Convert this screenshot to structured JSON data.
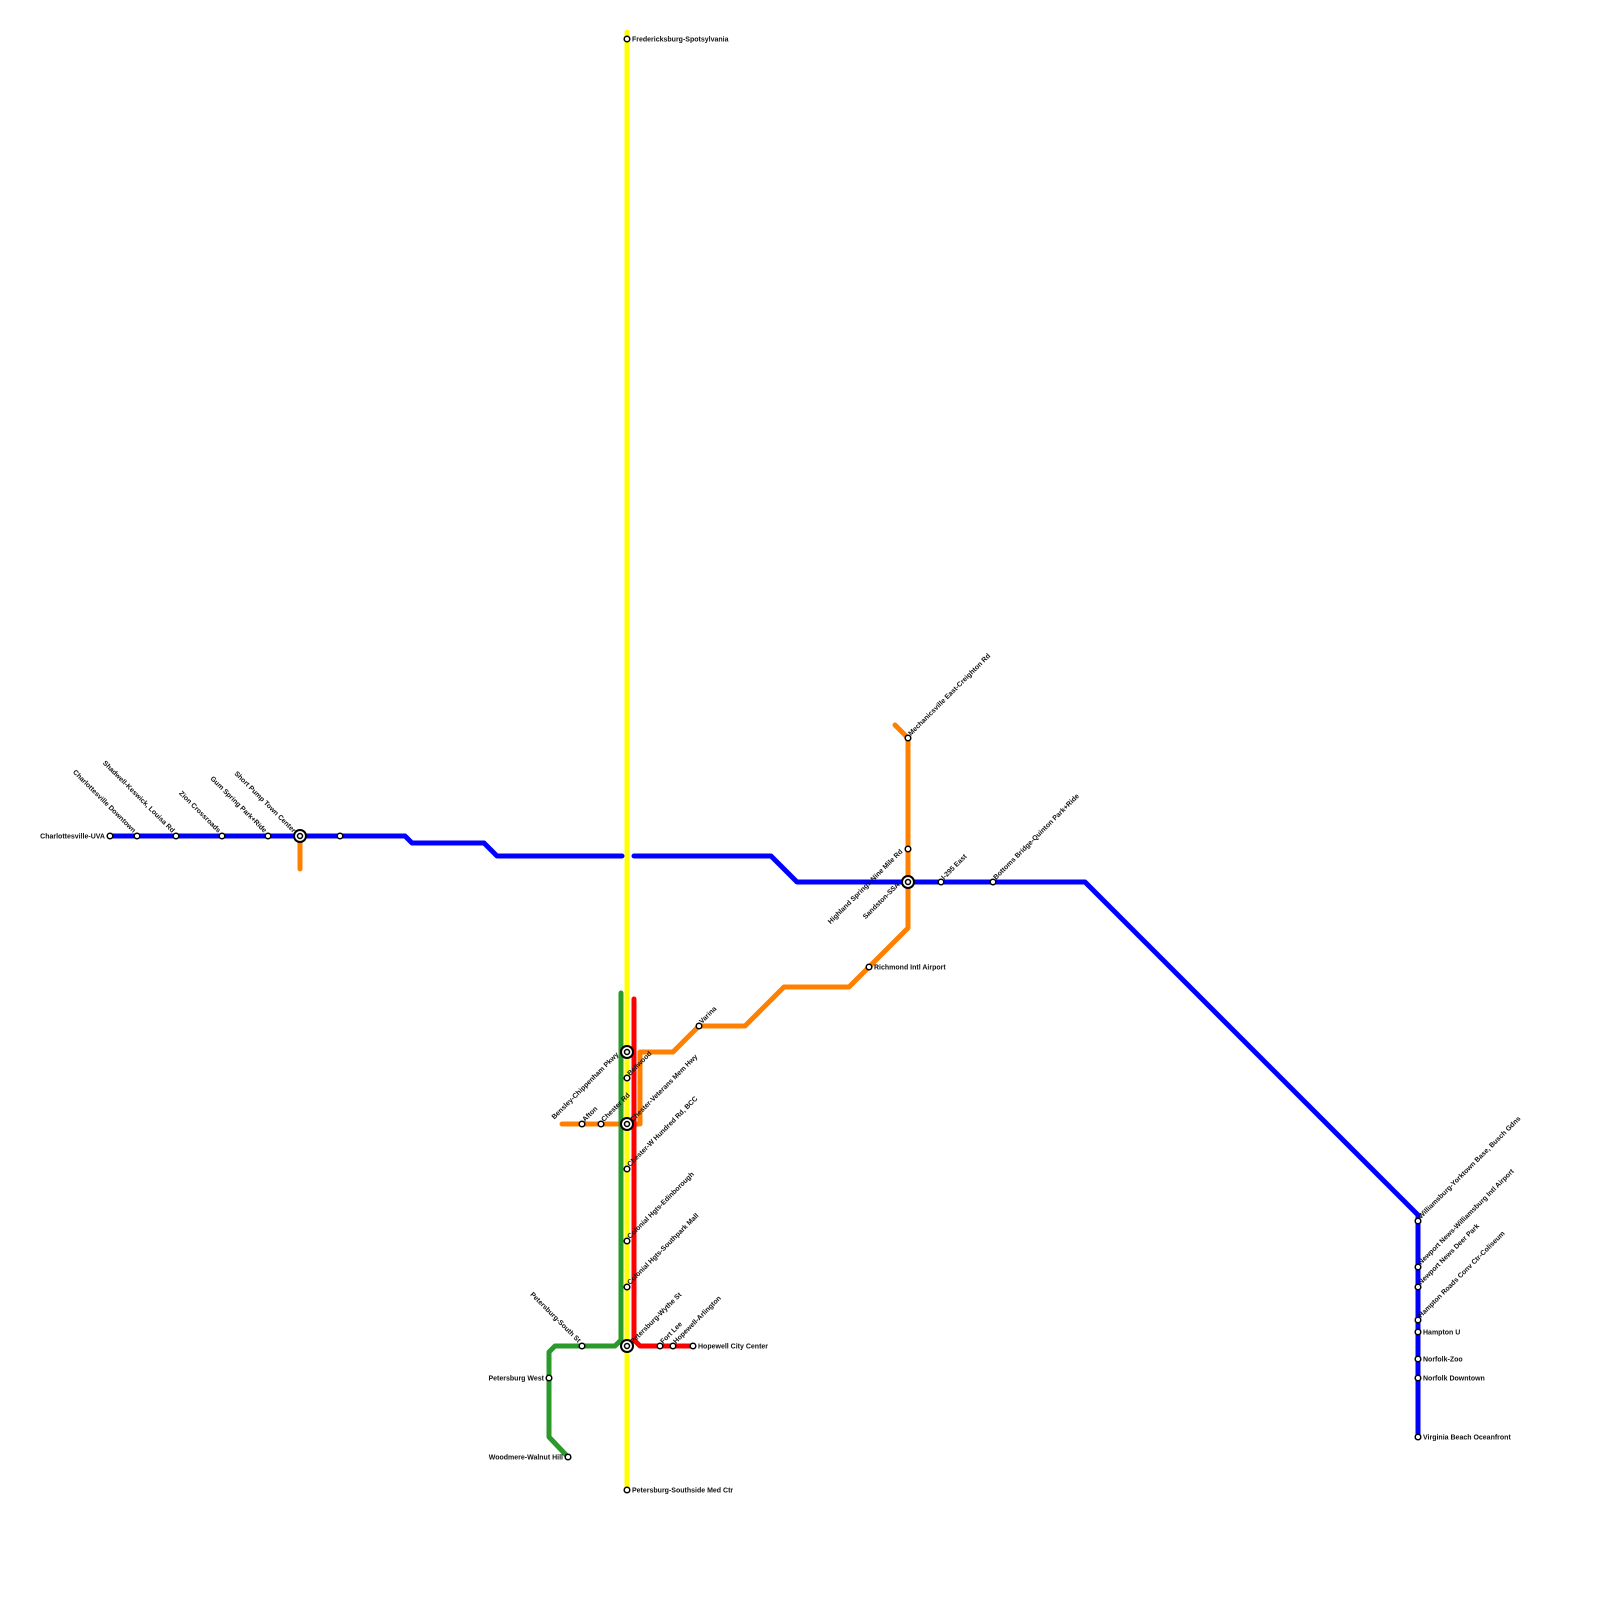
{
  "lines": [
    {
      "id": "blue",
      "color": "#0000ff"
    },
    {
      "id": "orange",
      "color": "#ff8000"
    },
    {
      "id": "yellow",
      "color": "#ffff00"
    },
    {
      "id": "green",
      "color": "#2a9a2a"
    },
    {
      "id": "red",
      "color": "#ff0000"
    }
  ],
  "stations": [
    {
      "name": "Charlottesville-UVA"
    },
    {
      "name": "Charlottesville Downtown"
    },
    {
      "name": "Shadwell-Keswick, Louisa Rd"
    },
    {
      "name": "Zion Crossroads"
    },
    {
      "name": "Gum Spring Park+Ride"
    },
    {
      "name": "Short Pump Town Center",
      "interchange": true
    },
    {
      "name": ""
    },
    {
      "name": "Mechanicsville East-Creighton Rd"
    },
    {
      "name": "Highland Springs-Nine Mile Rd"
    },
    {
      "name": "Sandston-SSA",
      "interchange": true
    },
    {
      "name": "I-295 East"
    },
    {
      "name": "Bottoms Bridge-Quinton Park+Ride"
    },
    {
      "name": "Richmond Intl Airport"
    },
    {
      "name": "Varina"
    },
    {
      "name": "Fredericksburg-Spotsylvania"
    },
    {
      "name": "Bensley-Chippenham Pkwy",
      "interchange": true
    },
    {
      "name": "Bellwood"
    },
    {
      "name": "Chester-Veterans Mem Hwy",
      "interchange": true
    },
    {
      "name": "Chester Rd"
    },
    {
      "name": "Afton"
    },
    {
      "name": "Chester-W Hundred Rd, BCC"
    },
    {
      "name": "Colonial Hgts-Edinborough"
    },
    {
      "name": "Colonial Hgts-Southpark Mall"
    },
    {
      "name": "Petersburg-Wythe St",
      "interchange": true
    },
    {
      "name": "Petersburg-Southside Med Ctr"
    },
    {
      "name": "Petersburg-South St"
    },
    {
      "name": "Petersburg West"
    },
    {
      "name": "Woodmere-Walnut Hill"
    },
    {
      "name": "Fort Lee"
    },
    {
      "name": "Hopewell-Arlington"
    },
    {
      "name": "Hopewell City Center"
    },
    {
      "name": "Williamsburg-Yorktown Base, Busch Gdns"
    },
    {
      "name": "Newport News-Williamsburg Intl Airport"
    },
    {
      "name": "Newport News Deer Park"
    },
    {
      "name": "Hampton Roads Conv Ctr-Coliseum"
    },
    {
      "name": "Hampton U"
    },
    {
      "name": "Norfolk-Zoo"
    },
    {
      "name": "Norfolk Downtown"
    },
    {
      "name": "Virginia Beach Oceanfront"
    }
  ]
}
